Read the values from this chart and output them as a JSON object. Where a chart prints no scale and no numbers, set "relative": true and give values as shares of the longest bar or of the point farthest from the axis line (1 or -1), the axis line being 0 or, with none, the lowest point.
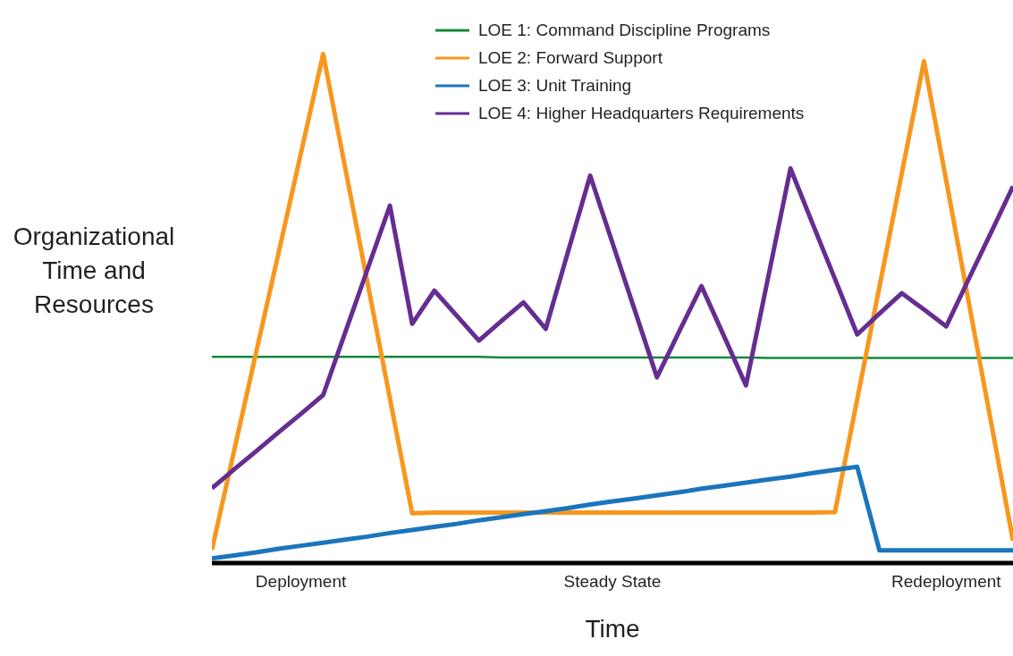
{
  "chart_data": {
    "type": "line",
    "relative": true,
    "xlabel": "Time",
    "ylabel": "Organizational Time and Resources",
    "legend": "top right",
    "grid": false,
    "marker": "none",
    "line_style": "solid",
    "categories": [
      null,
      null,
      null,
      null,
      "Deployment",
      null,
      null,
      null,
      null,
      null,
      null,
      null,
      null,
      null,
      null,
      null,
      null,
      null,
      "Steady State",
      null,
      null,
      null,
      null,
      null,
      null,
      null,
      null,
      null,
      null,
      null,
      null,
      null,
      null,
      "Redeployment",
      null,
      null,
      null
    ],
    "series": [
      {
        "name": "LOE 1: Command Discipline Programs",
        "color": "#138a3c",
        "values": [
          0.405,
          0.405,
          0.405,
          0.405,
          0.405,
          0.405,
          0.405,
          0.405,
          0.405,
          0.405,
          0.405,
          0.405,
          0.405,
          0.404,
          0.404,
          0.404,
          0.404,
          0.404,
          0.404,
          0.404,
          0.404,
          0.404,
          0.404,
          0.404,
          0.404,
          0.403,
          0.403,
          0.403,
          0.403,
          0.403,
          0.403,
          0.403,
          0.403,
          0.403,
          0.403,
          0.403,
          0.403
        ]
      },
      {
        "name": "LOE 2: Forward Support",
        "color": "#f7971e",
        "values": [
          0.026,
          0.221,
          0.416,
          0.61,
          0.805,
          1,
          0.774,
          0.549,
          0.323,
          0.098,
          0.099,
          0.099,
          0.099,
          0.099,
          0.099,
          0.099,
          0.099,
          0.099,
          0.099,
          0.099,
          0.099,
          0.099,
          0.099,
          0.099,
          0.099,
          0.099,
          0.099,
          0.099,
          0.1,
          0.322,
          0.543,
          0.765,
          0.986,
          0.751,
          0.515,
          0.28,
          0.044
        ]
      },
      {
        "name": "LOE 3: Unit Training",
        "color": "#1b75bc",
        "values": [
          0.009,
          0.015,
          0.021,
          0.028,
          0.034,
          0.04,
          0.046,
          0.052,
          0.059,
          0.065,
          0.071,
          0.077,
          0.084,
          0.09,
          0.096,
          0.102,
          0.108,
          0.115,
          0.121,
          0.127,
          0.133,
          0.139,
          0.146,
          0.152,
          0.158,
          0.164,
          0.17,
          0.177,
          0.183,
          0.189,
          0.025,
          0.025,
          0.025,
          0.025,
          0.025,
          0.025,
          0.025
        ]
      },
      {
        "name": "LOE 4: Higher Headquarters Requirements",
        "color": "#662d91",
        "values": [
          0.147,
          0.184,
          0.22,
          0.257,
          0.293,
          0.33,
          0.454,
          0.578,
          0.702,
          0.47,
          0.535,
          0.486,
          0.437,
          0.475,
          0.512,
          0.46,
          0.611,
          0.761,
          0.629,
          0.497,
          0.365,
          0.455,
          0.544,
          0.447,
          0.349,
          0.562,
          0.775,
          0.666,
          0.558,
          0.449,
          0.49,
          0.53,
          0.498,
          0.465,
          0.557,
          0.648,
          0.74
        ]
      }
    ]
  }
}
